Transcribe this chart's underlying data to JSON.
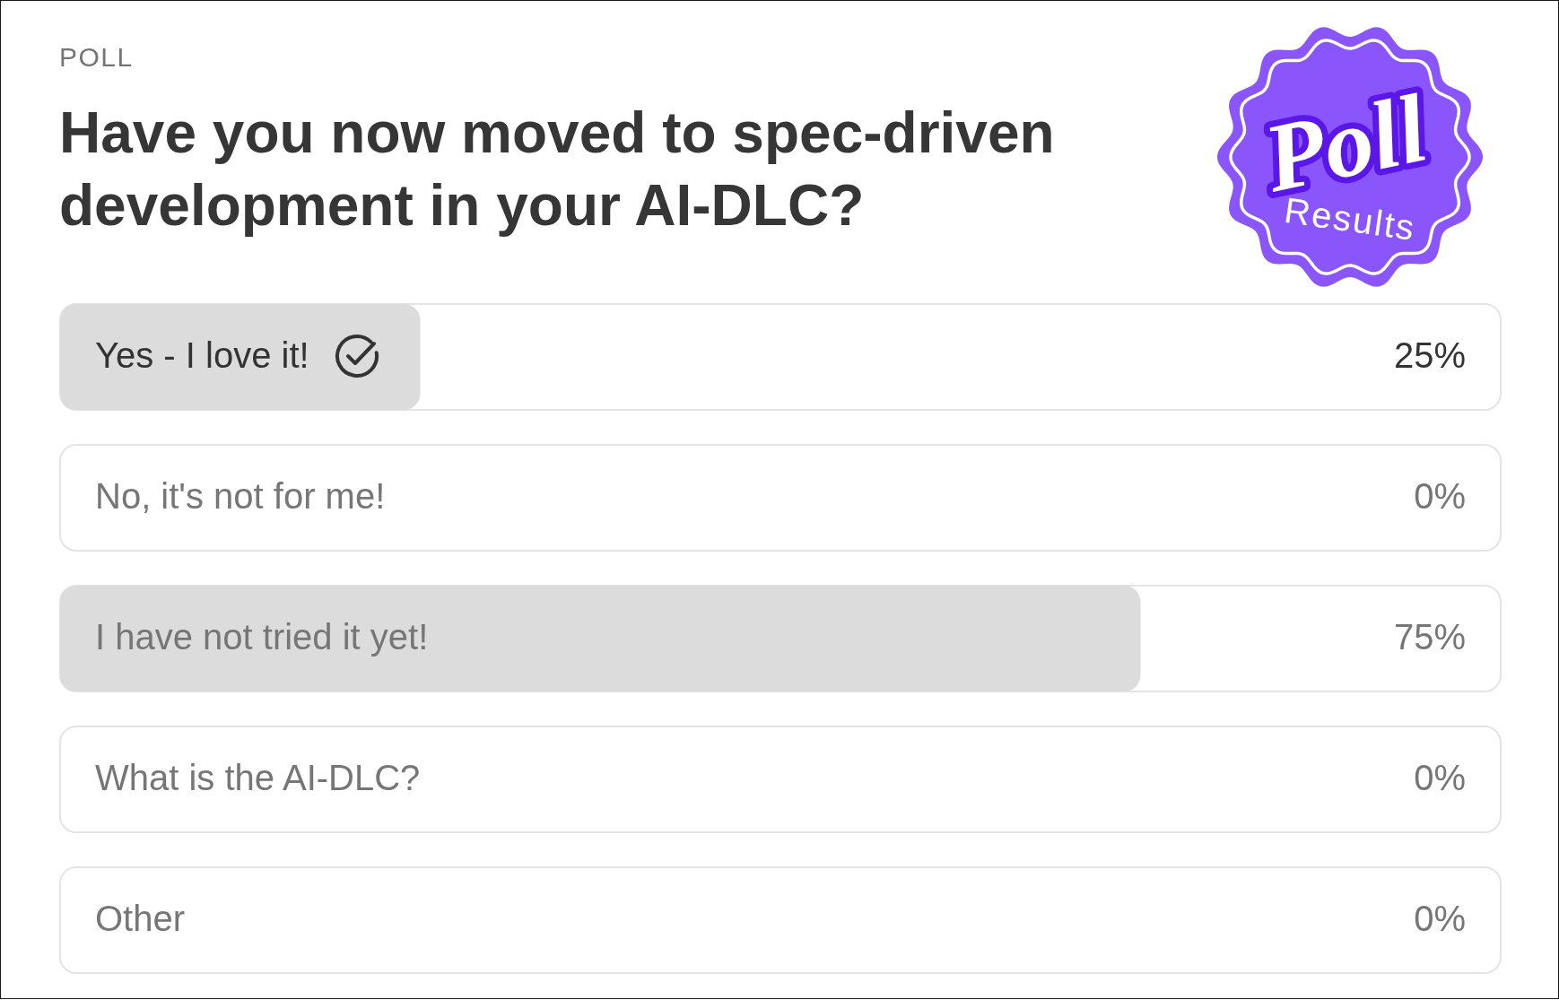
{
  "chart_data": {
    "type": "bar",
    "orientation": "horizontal",
    "title": "Have you now moved to spec-driven development in your AI-DLC?",
    "annotations": [
      "POLL",
      "Poll",
      "Results"
    ],
    "categories": [
      "Yes - I love it!",
      "No, it's not for me!",
      "I have not tried it yet!",
      "What is the AI-DLC?",
      "Other"
    ],
    "values": [
      25,
      0,
      75,
      0,
      0
    ],
    "value_labels": [
      "25%",
      "0%",
      "75%",
      "0%",
      "0%"
    ],
    "color": "#dcdcdc",
    "xlim": [
      0,
      100
    ]
  }
}
